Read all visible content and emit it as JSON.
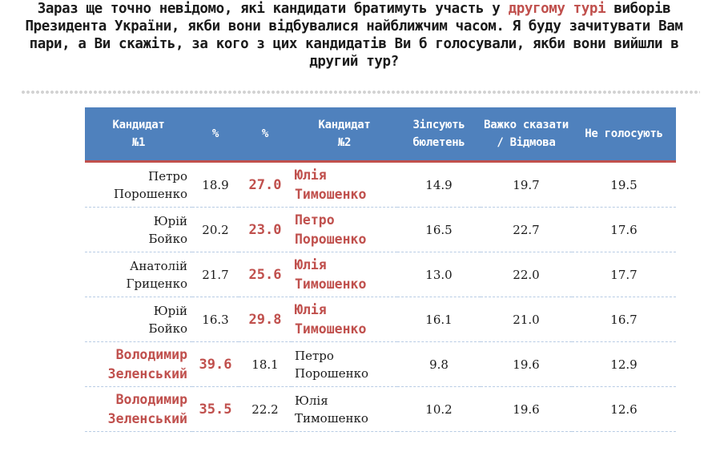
{
  "question": {
    "part1": "Зараз ще точно невідомо, які кандидати братимуть участь у ",
    "highlight": "другому турі",
    "part2": " виборів Президента України, якби вони відбувалися найближчим часом. Я буду зачитувати Вам пари, а Ви скажіть, за кого з цих кандидатів Ви б голосували, якби вони вийшли в другий тур?"
  },
  "colors": {
    "header_bg": "#4f81bd",
    "accent_red": "#c0504d",
    "dash": "#b8cce4"
  },
  "table": {
    "headers": [
      "Кандидат №1",
      "%",
      "%",
      "Кандидат №2",
      "Зіпсують бюлетень",
      "Важко сказати / Відмова",
      "Не голосують"
    ],
    "rows": [
      {
        "c1": "Петро Порошенко",
        "p1": "18.9",
        "p2": "27.0",
        "c2": "Юлія Тимошенко",
        "spoil": "14.9",
        "hard": "19.7",
        "novote": "19.5",
        "winner": 2
      },
      {
        "c1": "Юрій Бойко",
        "p1": "20.2",
        "p2": "23.0",
        "c2": "Петро Порошенко",
        "spoil": "16.5",
        "hard": "22.7",
        "novote": "17.6",
        "winner": 2
      },
      {
        "c1": "Анатолій Гриценко",
        "p1": "21.7",
        "p2": "25.6",
        "c2": "Юлія Тимошенко",
        "spoil": "13.0",
        "hard": "22.0",
        "novote": "17.7",
        "winner": 2
      },
      {
        "c1": "Юрій Бойко",
        "p1": "16.3",
        "p2": "29.8",
        "c2": "Юлія Тимошенко",
        "spoil": "16.1",
        "hard": "21.0",
        "novote": "16.7",
        "winner": 2
      },
      {
        "c1": "Володимир Зеленський",
        "p1": "39.6",
        "p2": "18.1",
        "c2": "Петро Порошенко",
        "spoil": "9.8",
        "hard": "19.6",
        "novote": "12.9",
        "winner": 1
      },
      {
        "c1": "Володимир Зеленський",
        "p1": "35.5",
        "p2": "22.2",
        "c2": "Юлія Тимошенко",
        "spoil": "10.2",
        "hard": "19.6",
        "novote": "12.6",
        "winner": 1
      }
    ]
  }
}
